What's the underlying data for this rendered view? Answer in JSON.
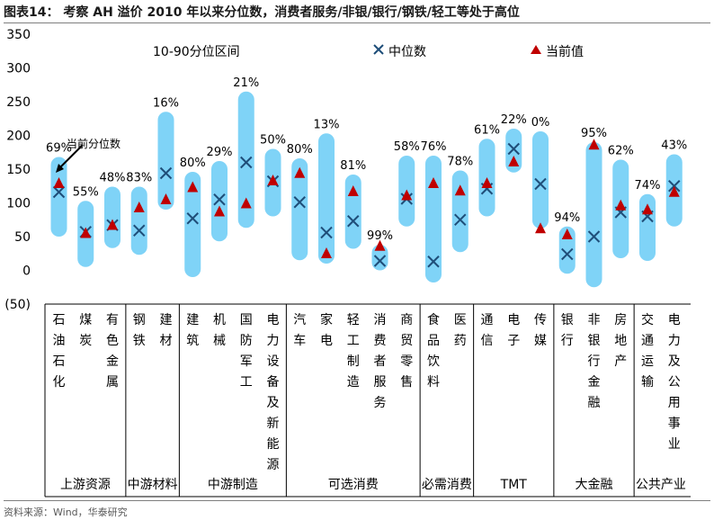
{
  "title": "图表14：  考察 AH 溢价 2010 年以来分位数，消费者服务/非银/银行/钢铁/轻工等处于高位",
  "source": "资料来源：Wind，华泰研究",
  "colors": {
    "range": "#7fd3f7",
    "median": "#1f4e79",
    "current": "#c00000",
    "axis": "#000000"
  },
  "annotation": "当前分位数",
  "chart_data": {
    "type": "range-dot",
    "title": "考察 AH 溢价 2010 年以来分位数，消费者服务/非银/银行/钢铁/轻工等处于高位",
    "ylim": [
      -50,
      350
    ],
    "yticks": [
      350,
      300,
      250,
      200,
      150,
      100,
      50,
      0,
      -50
    ],
    "ytick_labels": [
      "350",
      "300",
      "250",
      "200",
      "150",
      "100",
      "50",
      "0",
      "(50)"
    ],
    "legend": [
      {
        "key": "range",
        "label": "10-90分位区间"
      },
      {
        "key": "median",
        "label": "中位数"
      },
      {
        "key": "current",
        "label": "当前值"
      }
    ],
    "categories": [
      {
        "name": "石油石化",
        "low": 50,
        "high": 168,
        "median": 116,
        "current": 130,
        "pct": "69%"
      },
      {
        "name": "煤炭",
        "low": 5,
        "high": 103,
        "median": 57,
        "current": 56,
        "pct": "55%"
      },
      {
        "name": "有色金属",
        "low": 33,
        "high": 124,
        "median": 67,
        "current": 68,
        "pct": "48%"
      },
      {
        "name": "钢铁",
        "low": 23,
        "high": 124,
        "median": 59,
        "current": 94,
        "pct": "83%"
      },
      {
        "name": "建材",
        "low": 90,
        "high": 235,
        "median": 144,
        "current": 106,
        "pct": "16%"
      },
      {
        "name": "建筑",
        "low": -10,
        "high": 146,
        "median": 77,
        "current": 124,
        "pct": "80%"
      },
      {
        "name": "机械",
        "low": 43,
        "high": 162,
        "median": 105,
        "current": 88,
        "pct": "29%"
      },
      {
        "name": "国防军工",
        "low": 63,
        "high": 265,
        "median": 160,
        "current": 100,
        "pct": "21%"
      },
      {
        "name": "电力设备及新能源",
        "low": 80,
        "high": 180,
        "median": 132,
        "current": 134,
        "pct": "50%"
      },
      {
        "name": "汽车",
        "low": 15,
        "high": 166,
        "median": 101,
        "current": 145,
        "pct": "80%"
      },
      {
        "name": "家电",
        "low": 10,
        "high": 203,
        "median": 56,
        "current": 26,
        "pct": "13%"
      },
      {
        "name": "轻工制造",
        "low": 32,
        "high": 142,
        "median": 73,
        "current": 118,
        "pct": "81%"
      },
      {
        "name": "消费者服务",
        "low": 0,
        "high": 38,
        "median": 14,
        "current": 37,
        "pct": "99%"
      },
      {
        "name": "商贸零售",
        "low": 65,
        "high": 170,
        "median": 106,
        "current": 112,
        "pct": "58%"
      },
      {
        "name": "食品饮料",
        "low": -18,
        "high": 170,
        "median": 13,
        "current": 130,
        "pct": "76%"
      },
      {
        "name": "医药",
        "low": 27,
        "high": 148,
        "median": 75,
        "current": 119,
        "pct": "78%"
      },
      {
        "name": "通信",
        "low": 80,
        "high": 195,
        "median": 121,
        "current": 130,
        "pct": "61%"
      },
      {
        "name": "电子",
        "low": 145,
        "high": 210,
        "median": 180,
        "current": 162,
        "pct": "22%"
      },
      {
        "name": "传媒",
        "low": 62,
        "high": 206,
        "median": 128,
        "current": 63,
        "pct": "0%"
      },
      {
        "name": "银行",
        "low": -5,
        "high": 65,
        "median": 24,
        "current": 54,
        "pct": "94%"
      },
      {
        "name": "非银行金融",
        "low": -25,
        "high": 190,
        "median": 50,
        "current": 187,
        "pct": "95%"
      },
      {
        "name": "房地产",
        "low": 18,
        "high": 164,
        "median": 86,
        "current": 97,
        "pct": "62%"
      },
      {
        "name": "交通运输",
        "low": 14,
        "high": 113,
        "median": 80,
        "current": 91,
        "pct": "74%"
      },
      {
        "name": "电力及公用事业",
        "low": 65,
        "high": 172,
        "median": 125,
        "current": 117,
        "pct": "43%"
      }
    ],
    "groups": [
      {
        "label": "上游资源",
        "count": 3
      },
      {
        "label": "中游材料",
        "count": 2
      },
      {
        "label": "中游制造",
        "count": 4
      },
      {
        "label": "可选消费",
        "count": 5
      },
      {
        "label": "必需消费",
        "count": 2
      },
      {
        "label": "TMT",
        "count": 3
      },
      {
        "label": "大金融",
        "count": 3
      },
      {
        "label": "公共产业",
        "count": 2
      }
    ]
  }
}
